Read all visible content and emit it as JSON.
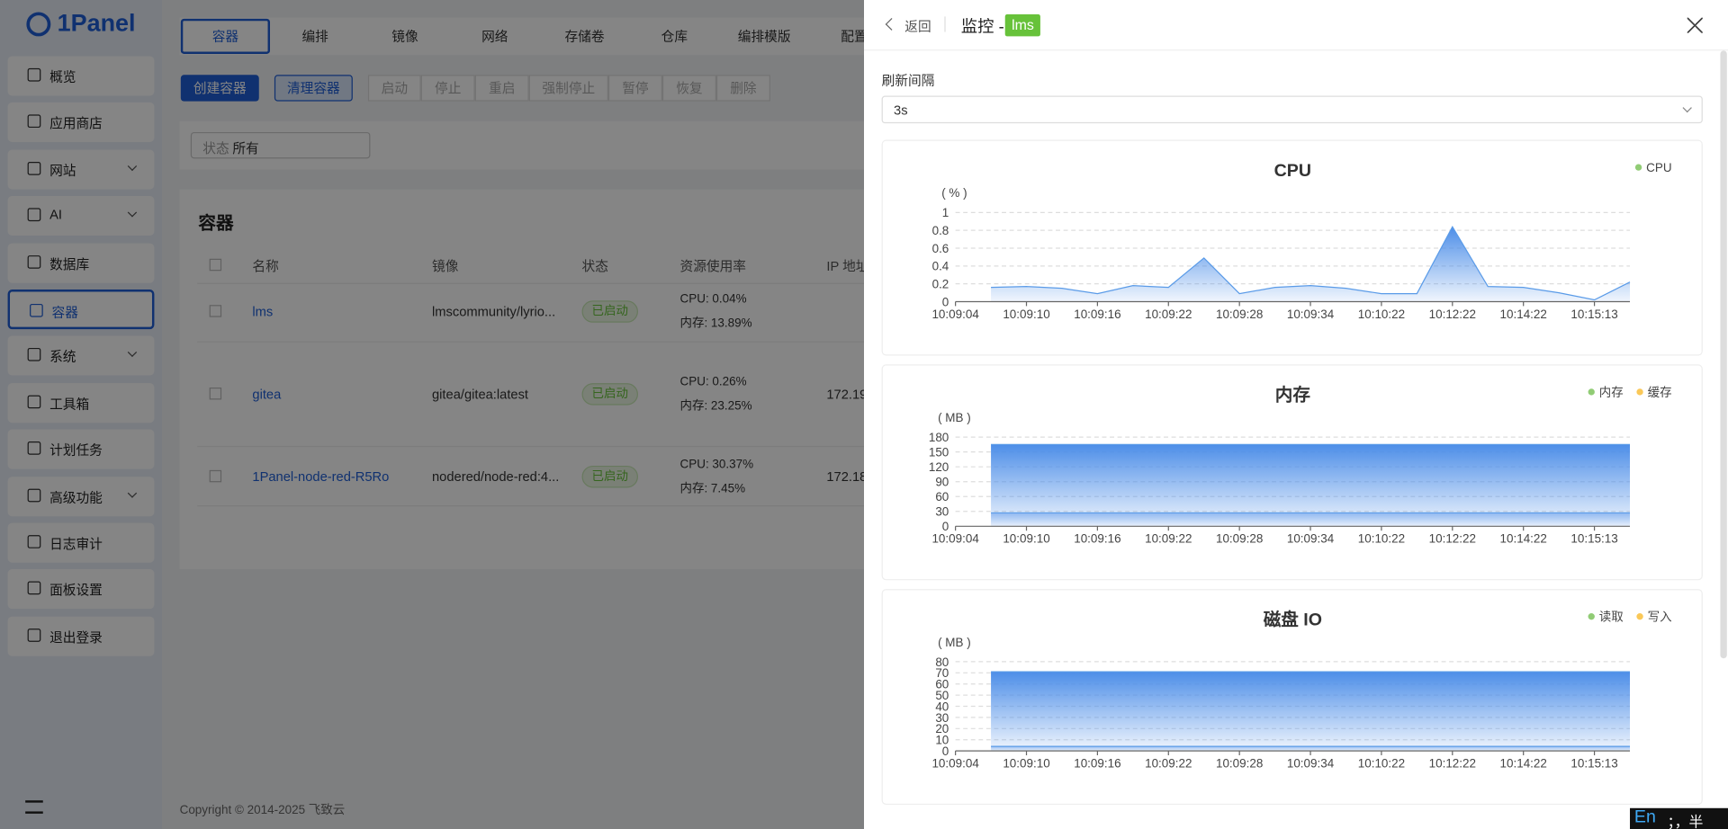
{
  "sidebar": {
    "logo": "1Panel",
    "menu": [
      {
        "label": "概览"
      },
      {
        "label": "应用商店"
      },
      {
        "label": "网站",
        "expand": true
      },
      {
        "label": "AI",
        "expand": true
      },
      {
        "label": "数据库"
      },
      {
        "label": "容器",
        "active": true
      },
      {
        "label": "系统",
        "expand": true
      },
      {
        "label": "工具箱"
      },
      {
        "label": "计划任务"
      },
      {
        "label": "高级功能",
        "expand": true
      },
      {
        "label": "日志审计"
      },
      {
        "label": "面板设置"
      },
      {
        "label": "退出登录"
      }
    ]
  },
  "tabs": {
    "items": [
      "容器",
      "编排",
      "镜像",
      "网络",
      "存储卷",
      "仓库",
      "编排模版",
      "配置"
    ],
    "active": 0
  },
  "toolbar": {
    "primary": "创建容器",
    "secondary": "清理容器",
    "group": [
      "启动",
      "停止",
      "重启",
      "强制停止",
      "暂停",
      "恢复",
      "删除"
    ]
  },
  "filter": {
    "label": "状态",
    "value": "所有"
  },
  "table": {
    "title": "容器",
    "columns": [
      "名称",
      "镜像",
      "状态",
      "资源使用率",
      "IP 地址"
    ],
    "rows": [
      {
        "name": "lms",
        "image": "lmscommunity/lyrio...",
        "status": "已启动",
        "cpu": "CPU: 0.04%",
        "mem": "内存: 13.89%"
      },
      {
        "name": "gitea",
        "image": "gitea/gitea:latest",
        "status": "已启动",
        "cpu": "CPU: 0.26%",
        "mem": "内存: 23.25%",
        "ip": "172.19"
      },
      {
        "name": "1Panel-node-red-R5Ro",
        "image": "nodered/node-red:4...",
        "status": "已启动",
        "cpu": "CPU: 30.37%",
        "mem": "内存: 7.45%",
        "ip": "172.18"
      }
    ]
  },
  "footer": "Copyright © 2014-2025 飞致云",
  "drawer": {
    "back": "返回",
    "title": "监控 -",
    "tag": "lms",
    "refresh_label": "刷新间隔",
    "refresh_value": "3s"
  },
  "ime": [
    "En",
    "；，半"
  ],
  "charts": [
    {
      "type": "line",
      "title": "CPU",
      "unit": "( % )",
      "grid": true,
      "area_color": "#4d8ee8",
      "categories": [
        "10:09:04",
        null,
        "10:09:10",
        null,
        "10:09:16",
        null,
        "10:09:22",
        null,
        "10:09:28",
        null,
        "10:09:34",
        null,
        "10:10:22",
        null,
        "10:12:22",
        null,
        "10:14:22",
        null,
        "10:15:13",
        null
      ],
      "ylim": [
        0,
        1
      ],
      "yticks": [
        0,
        0.2,
        0.4,
        0.6,
        0.8,
        1
      ],
      "series": [
        {
          "name": "CPU",
          "color": "#91cc75",
          "values": [
            null,
            0.16,
            0.17,
            0.15,
            0.09,
            0.18,
            0.16,
            0.49,
            0.09,
            0.16,
            0.18,
            0.15,
            0.09,
            0.09,
            0.84,
            0.17,
            0.16,
            0.1,
            0.02,
            0.22
          ]
        }
      ]
    },
    {
      "type": "line",
      "title": "内存",
      "unit": "( MB )",
      "grid": true,
      "area_color": "#4d8ee8",
      "categories": [
        "10:09:04",
        null,
        "10:09:10",
        null,
        "10:09:16",
        null,
        "10:09:22",
        null,
        "10:09:28",
        null,
        "10:09:34",
        null,
        "10:10:22",
        null,
        "10:12:22",
        null,
        "10:14:22",
        null,
        "10:15:13",
        null
      ],
      "ylim": [
        0,
        180
      ],
      "yticks": [
        0,
        30,
        60,
        90,
        120,
        150,
        180
      ],
      "series": [
        {
          "name": "内存",
          "color": "#91cc75",
          "values": [
            null,
            165,
            165,
            165,
            165,
            165,
            165,
            165,
            165,
            165,
            165,
            165,
            165,
            165,
            165,
            165,
            165,
            165,
            165,
            165
          ]
        },
        {
          "name": "缓存",
          "color": "#fac858",
          "values": [
            null,
            27,
            27,
            27,
            27,
            27,
            27,
            27,
            27,
            27,
            27,
            27,
            27,
            27,
            27,
            27,
            27,
            27,
            27,
            27
          ]
        }
      ]
    },
    {
      "type": "line",
      "title": "磁盘 IO",
      "unit": "( MB )",
      "grid": true,
      "area_color": "#4d8ee8",
      "categories": [
        "10:09:04",
        null,
        "10:09:10",
        null,
        "10:09:16",
        null,
        "10:09:22",
        null,
        "10:09:28",
        null,
        "10:09:34",
        null,
        "10:10:22",
        null,
        "10:12:22",
        null,
        "10:14:22",
        null,
        "10:15:13",
        null
      ],
      "ylim": [
        0,
        80
      ],
      "yticks": [
        0,
        10,
        20,
        30,
        40,
        50,
        60,
        70,
        80
      ],
      "series": [
        {
          "name": "读取",
          "color": "#91cc75",
          "values": [
            null,
            71,
            71,
            71,
            71,
            71,
            71,
            71,
            71,
            71,
            71,
            71,
            71,
            71,
            71,
            71,
            71,
            71,
            71,
            71
          ]
        },
        {
          "name": "写入",
          "color": "#fac858",
          "values": [
            null,
            4,
            4,
            4,
            4,
            4,
            4,
            4,
            4,
            4,
            4,
            4,
            4,
            4,
            4,
            4,
            4,
            4,
            4,
            4
          ]
        }
      ]
    }
  ]
}
